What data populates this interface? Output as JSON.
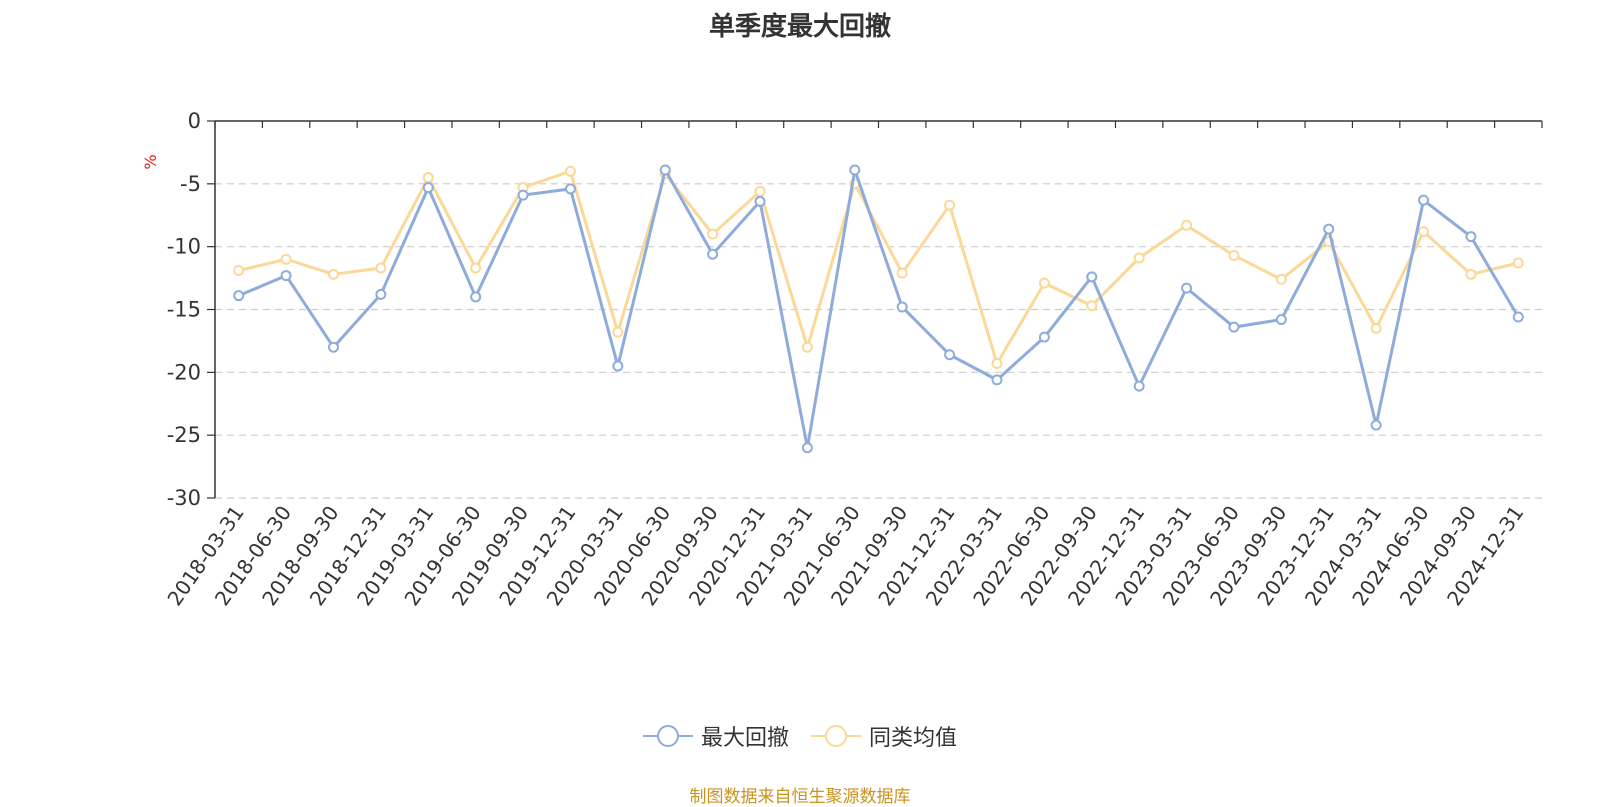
{
  "chart_data": {
    "type": "line",
    "title": "单季度最大回撤",
    "ylabel": "%",
    "ylim": [
      -30,
      0
    ],
    "yticks": [
      0,
      -5,
      -10,
      -15,
      -20,
      -25,
      -30
    ],
    "grid": true,
    "legend_position": "bottom-center",
    "categories": [
      "2018-03-31",
      "2018-06-30",
      "2018-09-30",
      "2018-12-31",
      "2019-03-31",
      "2019-06-30",
      "2019-09-30",
      "2019-12-31",
      "2020-03-31",
      "2020-06-30",
      "2020-09-30",
      "2020-12-31",
      "2021-03-31",
      "2021-06-30",
      "2021-09-30",
      "2021-12-31",
      "2022-03-31",
      "2022-06-30",
      "2022-09-30",
      "2022-12-31",
      "2023-03-31",
      "2023-06-30",
      "2023-09-30",
      "2023-12-31",
      "2024-03-31",
      "2024-06-30",
      "2024-09-30",
      "2024-12-31"
    ],
    "series": [
      {
        "name": "最大回撤",
        "color": "#8dacdb",
        "values": [
          -13.9,
          -12.3,
          -18.0,
          -13.8,
          -5.3,
          -14.0,
          -5.9,
          -5.4,
          -19.5,
          -3.9,
          -10.6,
          -6.4,
          -26.0,
          -3.9,
          -14.8,
          -18.6,
          -20.6,
          -17.2,
          -12.4,
          -21.1,
          -13.3,
          -16.4,
          -15.8,
          -8.6,
          -24.2,
          -6.3,
          -9.2,
          -15.6
        ]
      },
      {
        "name": "同类均值",
        "color": "#fcd898",
        "values": [
          -11.9,
          -11.0,
          -12.2,
          -11.7,
          -4.5,
          -11.7,
          -5.3,
          -4.0,
          -16.8,
          -4.2,
          -9.0,
          -5.6,
          -18.0,
          -5.0,
          -12.1,
          -6.7,
          -19.3,
          -12.9,
          -14.7,
          -10.9,
          -8.3,
          -10.7,
          -12.6,
          -9.6,
          -16.5,
          -8.8,
          -12.2,
          -11.3
        ]
      }
    ]
  },
  "source_note": "制图数据来自恒生聚源数据库",
  "colors": {
    "axis": "#333333",
    "grid": "#cccccc",
    "ylabel": "#e01b1b",
    "source": "#c9931f"
  }
}
